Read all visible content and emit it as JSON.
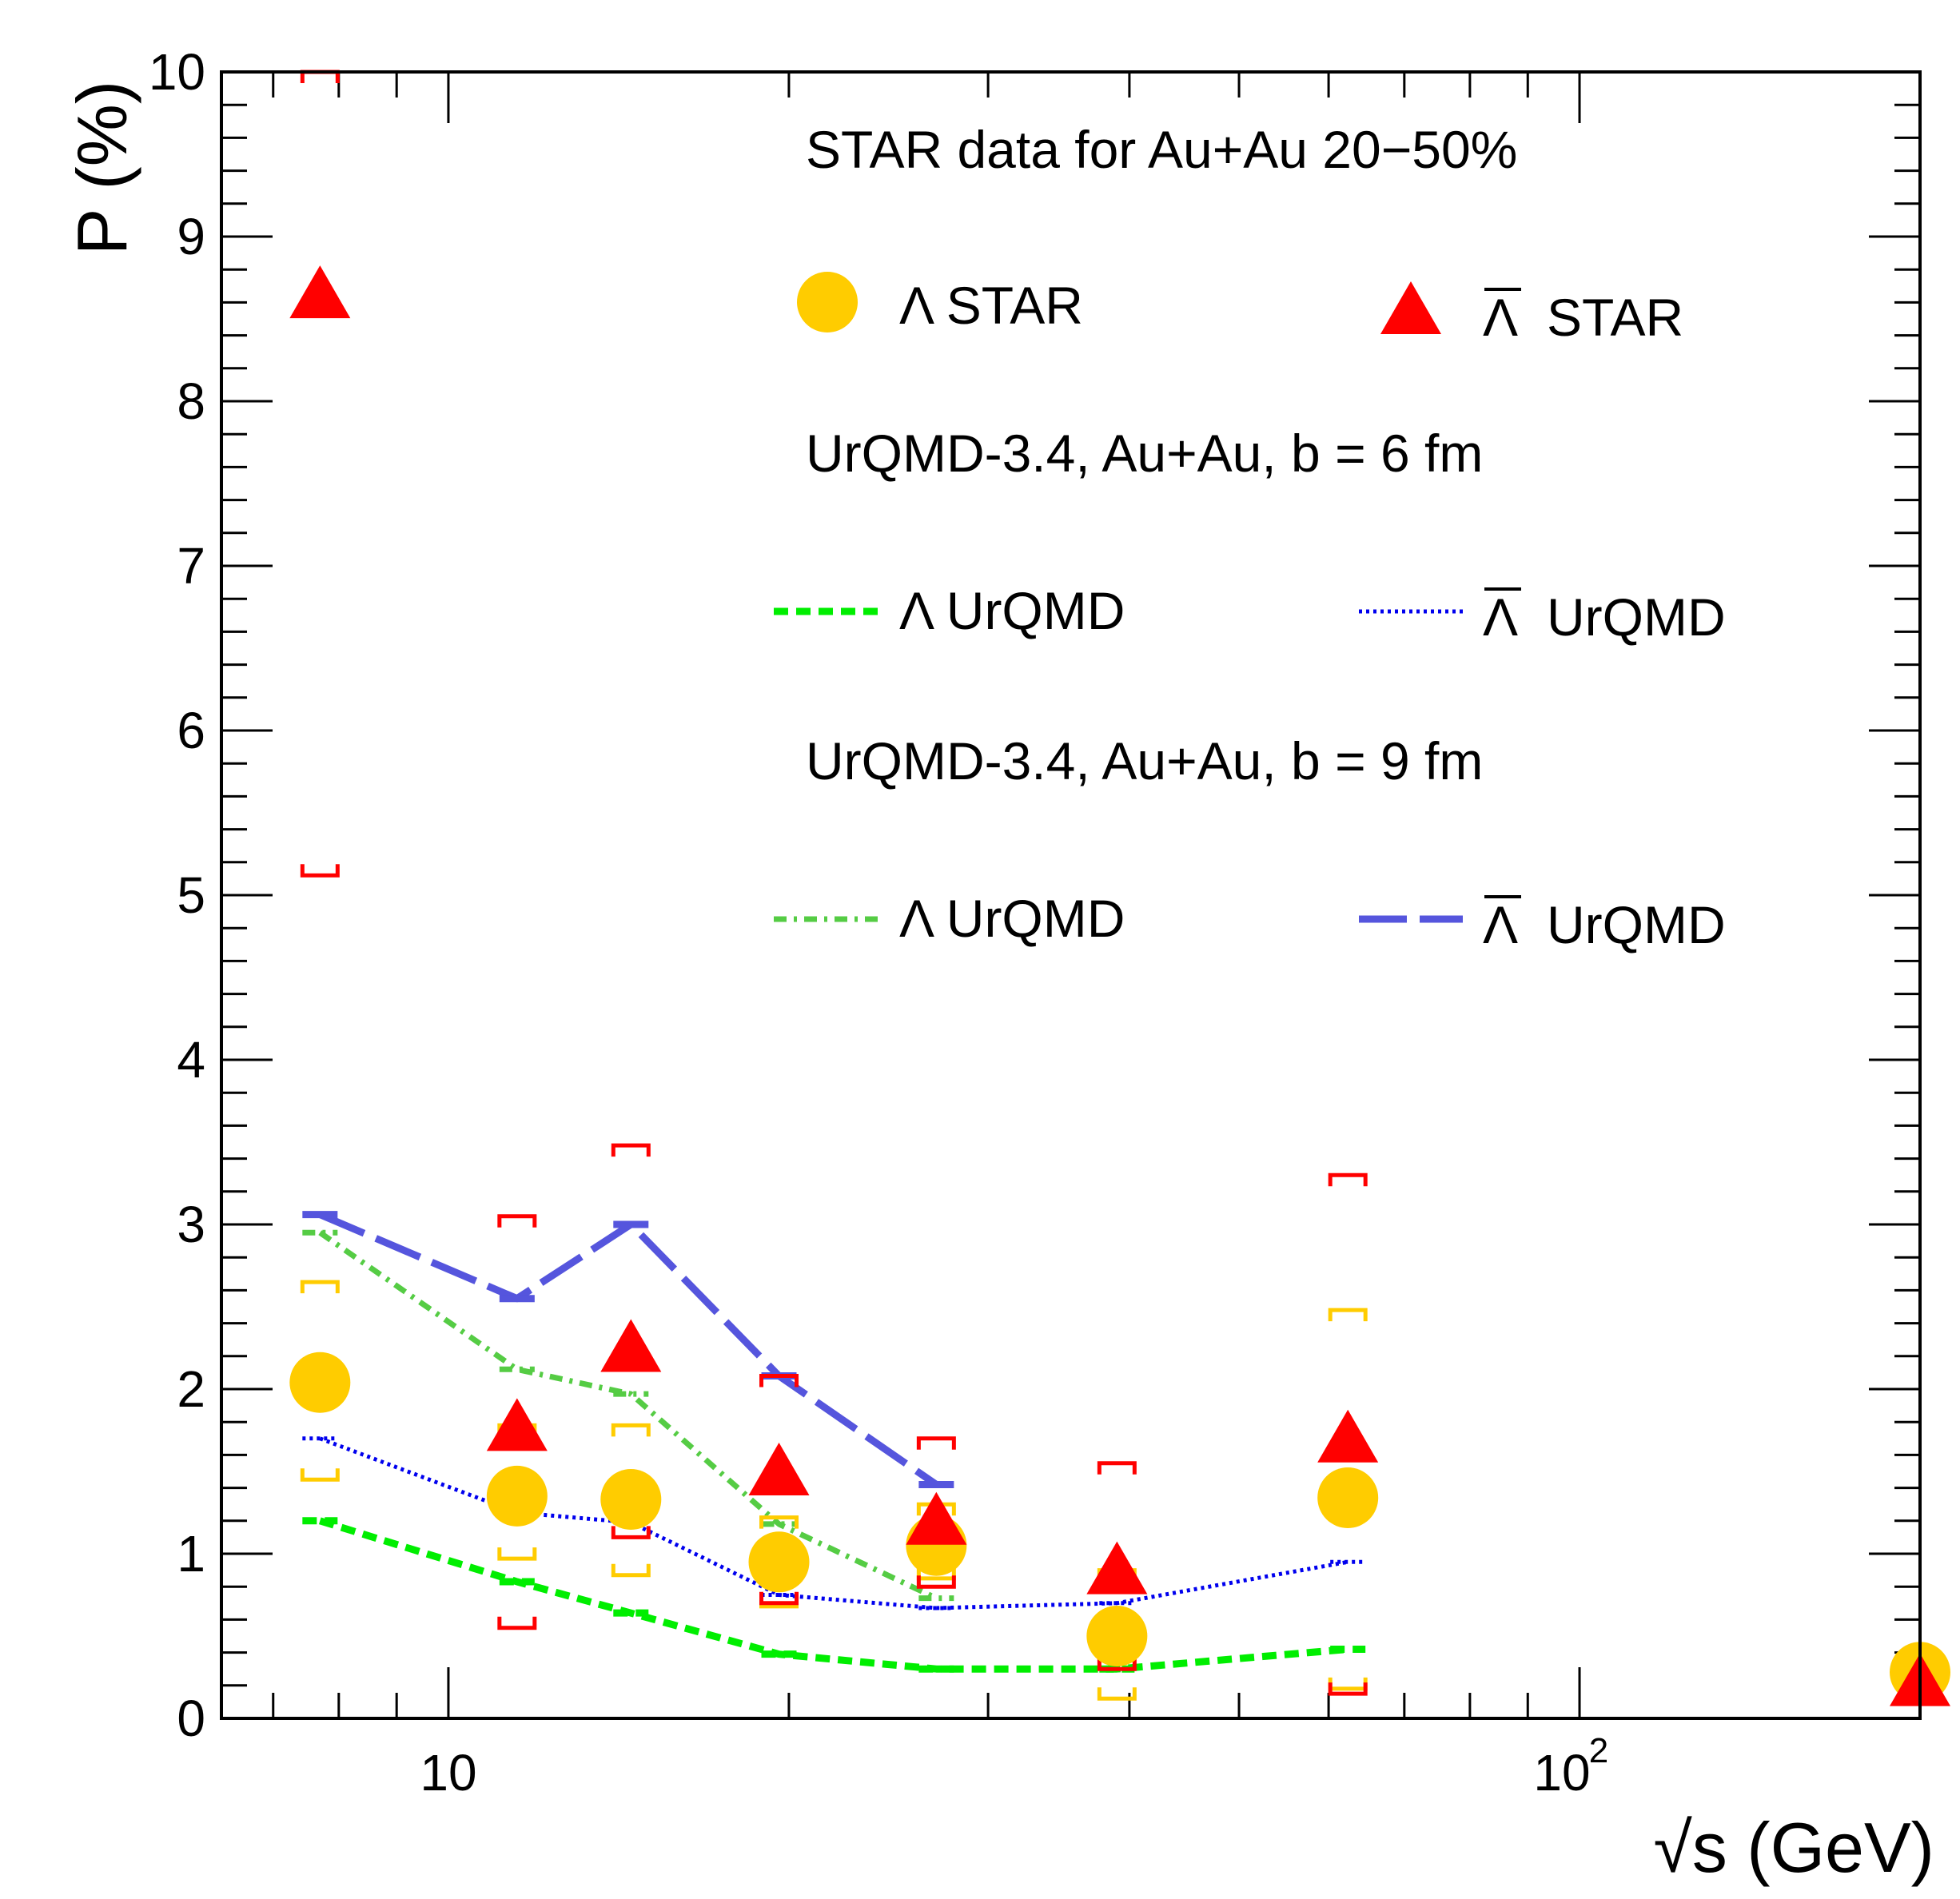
{
  "chart_data": {
    "type": "scatter",
    "title": "",
    "xlabel": "√s (GeV)",
    "ylabel": "P (%)",
    "x_scale": "log",
    "xlim": [
      6.3,
      200
    ],
    "ylim": [
      0,
      10
    ],
    "x_tick_labels": [
      {
        "value": 10,
        "base": "10",
        "exp": ""
      },
      {
        "value": 100,
        "base": "10",
        "exp": "2"
      }
    ],
    "y_tick_labels": [
      "0",
      "1",
      "2",
      "3",
      "4",
      "5",
      "6",
      "7",
      "8",
      "9",
      "10"
    ],
    "legend": {
      "header_star": "STAR data for Au+Au 20−50%",
      "lambda_star": "Λ STAR",
      "antilambda_star_sym": "Λ",
      "antilambda_star_text": "STAR",
      "header_b6": "UrQMD-3.4, Au+Au, b = 6 fm",
      "lambda_b6": "Λ UrQMD",
      "antilambda_b6_sym": "Λ",
      "antilambda_b6_text": "UrQMD",
      "header_b9": "UrQMD-3.4, Au+Au, b = 9 fm",
      "lambda_b9": "Λ UrQMD",
      "antilambda_b9_sym": "Λ",
      "antilambda_b9_text": "UrQMD"
    },
    "colors": {
      "lambda_star": "#ffcc00",
      "antilambda_star": "#ff0000",
      "lambda_b6": "#00ee00",
      "antilambda_b6": "#0000ee",
      "lambda_b9": "#55cc44",
      "antilambda_b9": "#5555dd"
    },
    "series": [
      {
        "name": "Λ STAR",
        "key": "lambda_star",
        "marker": "circle",
        "x": [
          7.7,
          11.5,
          14.5,
          19.6,
          27,
          39,
          62.4,
          200
        ],
        "y": [
          2.04,
          1.35,
          1.33,
          0.95,
          1.05,
          0.5,
          1.34,
          0.28
        ],
        "sys_low": [
          1.45,
          0.97,
          0.87,
          0.68,
          0.85,
          0.12,
          0.18,
          null
        ],
        "sys_high": [
          2.65,
          1.78,
          1.78,
          1.22,
          1.3,
          0.9,
          2.48,
          null
        ]
      },
      {
        "name": "Λ̄ STAR",
        "key": "antilambda_star",
        "marker": "triangle",
        "x": [
          7.7,
          11.5,
          14.5,
          19.6,
          27,
          39,
          62.4,
          200
        ],
        "y": [
          8.65,
          1.77,
          2.25,
          1.5,
          1.2,
          0.9,
          1.7,
          0.22
        ],
        "sys_low": [
          5.12,
          0.55,
          1.1,
          0.7,
          0.8,
          0.3,
          0.15,
          null
        ],
        "sys_high": [
          10.0,
          3.05,
          3.48,
          2.08,
          1.7,
          1.55,
          3.3,
          null
        ]
      },
      {
        "name": "Λ UrQMD b = 6 fm",
        "key": "lambda_b6",
        "style": "dashed",
        "x": [
          7.7,
          11.5,
          14.5,
          19.6,
          27,
          39,
          62.4
        ],
        "y": [
          1.2,
          0.83,
          0.64,
          0.39,
          0.3,
          0.3,
          0.42
        ]
      },
      {
        "name": "Λ̄ UrQMD b = 6 fm",
        "key": "antilambda_b6",
        "style": "dotted",
        "x": [
          7.7,
          11.5,
          14.5,
          19.6,
          27,
          39,
          62.4
        ],
        "y": [
          1.7,
          1.25,
          1.19,
          0.75,
          0.67,
          0.7,
          0.95
        ]
      },
      {
        "name": "Λ UrQMD b = 9 fm",
        "key": "lambda_b9",
        "style": "dashdot",
        "x": [
          7.7,
          11.5,
          14.5,
          19.6,
          27
        ],
        "y": [
          2.95,
          2.12,
          1.97,
          1.18,
          0.73
        ]
      },
      {
        "name": "Λ̄ UrQMD b = 9 fm",
        "key": "antilambda_b9",
        "style": "longdash",
        "x": [
          7.7,
          11.5,
          14.5,
          19.6,
          27
        ],
        "y": [
          3.06,
          2.55,
          3.0,
          2.08,
          1.42
        ]
      }
    ]
  }
}
